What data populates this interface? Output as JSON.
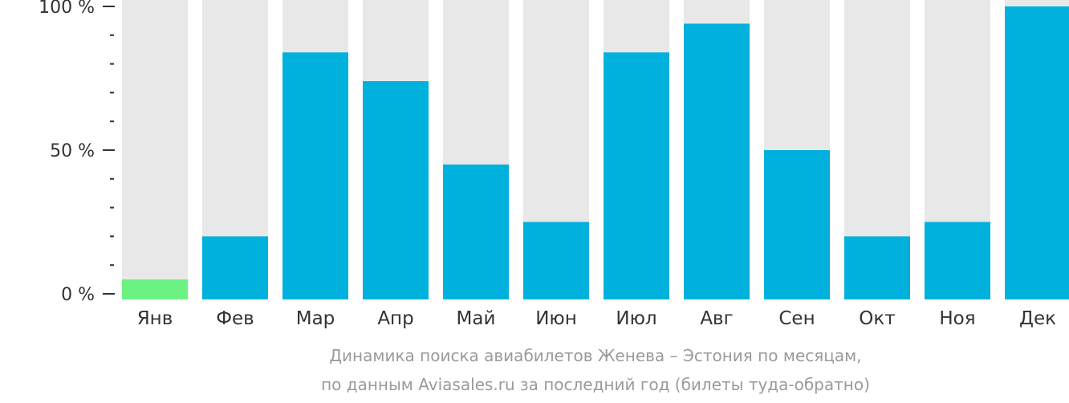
{
  "chart_data": {
    "type": "bar",
    "categories": [
      "Янв",
      "Фев",
      "Мар",
      "Апр",
      "Май",
      "Июн",
      "Июл",
      "Авг",
      "Сен",
      "Окт",
      "Ноя",
      "Дек"
    ],
    "values": [
      5,
      20,
      84,
      74,
      45,
      25,
      84,
      94,
      50,
      20,
      25,
      100
    ],
    "ylim": [
      0,
      100
    ],
    "yticks": [
      {
        "value": 0,
        "label": "0 %"
      },
      {
        "value": 50,
        "label": "50 %"
      },
      {
        "value": 100,
        "label": "100 %"
      }
    ],
    "minor_tick_step": 10,
    "colors": {
      "bar": "#00b0dd",
      "highlight": "#6cf283",
      "background_bar": "#e8e8e8",
      "axis": "#333333"
    },
    "highlight_index": 0
  },
  "caption": {
    "line1": "Динамика поиска авиабилетов Женева – Эстония по месяцам,",
    "line2": "по данным Aviasales.ru за последний год (билеты туда-обратно)"
  }
}
